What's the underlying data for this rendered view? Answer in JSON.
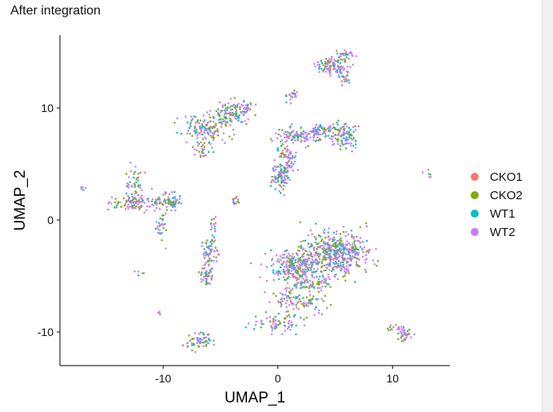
{
  "window": {
    "title": "After integration"
  },
  "colors": {
    "CKO1": "#F8766D",
    "CKO2": "#7CAE00",
    "WT1": "#00BFC4",
    "WT2": "#C77CFF"
  },
  "chart_data": {
    "type": "scatter",
    "title": "After integration",
    "xlabel": "UMAP_1",
    "ylabel": "UMAP_2",
    "xlim": [
      -19,
      15
    ],
    "ylim": [
      -13,
      16.5
    ],
    "xticks": [
      -10,
      0,
      10
    ],
    "yticks": [
      -10,
      0,
      10
    ],
    "xticklabels": [
      "-10",
      "0",
      "10"
    ],
    "yticklabels": [
      "-10",
      "0",
      "10"
    ],
    "grid": false,
    "legend_position": "right",
    "series": [
      {
        "name": "CKO1",
        "color": "#F8766D"
      },
      {
        "name": "CKO2",
        "color": "#7CAE00"
      },
      {
        "name": "WT1",
        "color": "#00BFC4"
      },
      {
        "name": "WT2",
        "color": "#C77CFF"
      }
    ],
    "clusters": [
      {
        "cx": 6.0,
        "cy": 14.8,
        "sx": 0.4,
        "sy": 0.3,
        "n": 25
      },
      {
        "cx": 4.8,
        "cy": 13.8,
        "sx": 1.0,
        "sy": 0.6,
        "n": 110
      },
      {
        "cx": 5.8,
        "cy": 12.8,
        "sx": 0.4,
        "sy": 0.5,
        "n": 20
      },
      {
        "cx": 1.2,
        "cy": 11.2,
        "sx": 0.4,
        "sy": 0.4,
        "n": 20
      },
      {
        "cx": -6.2,
        "cy": 8.2,
        "sx": 1.2,
        "sy": 0.8,
        "n": 140
      },
      {
        "cx": -4.2,
        "cy": 9.2,
        "sx": 1.2,
        "sy": 0.5,
        "n": 70
      },
      {
        "cx": -3.4,
        "cy": 10.0,
        "sx": 1.2,
        "sy": 0.4,
        "n": 60
      },
      {
        "cx": -6.8,
        "cy": 6.2,
        "sx": 0.5,
        "sy": 0.5,
        "n": 25
      },
      {
        "cx": 1.8,
        "cy": 7.5,
        "sx": 1.2,
        "sy": 0.5,
        "n": 110
      },
      {
        "cx": 0.7,
        "cy": 5.5,
        "sx": 0.6,
        "sy": 1.0,
        "n": 90
      },
      {
        "cx": 0.2,
        "cy": 3.8,
        "sx": 0.5,
        "sy": 0.8,
        "n": 80
      },
      {
        "cx": 3.8,
        "cy": 8.0,
        "sx": 1.2,
        "sy": 0.4,
        "n": 60
      },
      {
        "cx": 5.8,
        "cy": 7.6,
        "sx": 0.8,
        "sy": 0.8,
        "n": 100
      },
      {
        "cx": -12.6,
        "cy": 3.5,
        "sx": 0.6,
        "sy": 1.0,
        "n": 40
      },
      {
        "cx": -12.0,
        "cy": 1.6,
        "sx": 1.6,
        "sy": 0.5,
        "n": 120
      },
      {
        "cx": -9.3,
        "cy": 1.6,
        "sx": 0.6,
        "sy": 0.5,
        "n": 60
      },
      {
        "cx": -10.2,
        "cy": -0.8,
        "sx": 0.4,
        "sy": 0.9,
        "n": 30
      },
      {
        "cx": -3.7,
        "cy": 1.7,
        "sx": 0.3,
        "sy": 0.3,
        "n": 15
      },
      {
        "cx": -6.0,
        "cy": -3.0,
        "sx": 0.4,
        "sy": 1.2,
        "n": 70
      },
      {
        "cx": -6.2,
        "cy": -5.0,
        "sx": 0.4,
        "sy": 0.6,
        "n": 40
      },
      {
        "cx": -5.6,
        "cy": -0.5,
        "sx": 0.25,
        "sy": 0.6,
        "n": 15
      },
      {
        "cx": 5.0,
        "cy": -3.0,
        "sx": 2.0,
        "sy": 1.3,
        "n": 500
      },
      {
        "cx": 1.5,
        "cy": -4.2,
        "sx": 1.6,
        "sy": 1.0,
        "n": 280
      },
      {
        "cx": 3.0,
        "cy": -5.8,
        "sx": 1.0,
        "sy": 0.4,
        "n": 50
      },
      {
        "cx": 1.0,
        "cy": -7.0,
        "sx": 1.0,
        "sy": 0.8,
        "n": 60
      },
      {
        "cx": 0.0,
        "cy": -9.2,
        "sx": 1.2,
        "sy": 0.6,
        "n": 70
      },
      {
        "cx": 3.0,
        "cy": -7.5,
        "sx": 0.8,
        "sy": 0.6,
        "n": 40
      },
      {
        "cx": -6.8,
        "cy": -10.8,
        "sx": 0.8,
        "sy": 0.5,
        "n": 60
      },
      {
        "cx": 11.0,
        "cy": -10.2,
        "sx": 0.4,
        "sy": 0.4,
        "n": 40
      },
      {
        "cx": 10.0,
        "cy": -9.6,
        "sx": 0.4,
        "sy": 0.2,
        "n": 10
      },
      {
        "cx": -17.0,
        "cy": 2.8,
        "sx": 0.2,
        "sy": 0.15,
        "n": 5
      },
      {
        "cx": 13.0,
        "cy": 4.0,
        "sx": 0.3,
        "sy": 0.3,
        "n": 6
      },
      {
        "cx": -12.0,
        "cy": -4.8,
        "sx": 0.3,
        "sy": 0.2,
        "n": 5
      },
      {
        "cx": -10.3,
        "cy": -8.3,
        "sx": 0.2,
        "sy": 0.2,
        "n": 4
      }
    ]
  }
}
